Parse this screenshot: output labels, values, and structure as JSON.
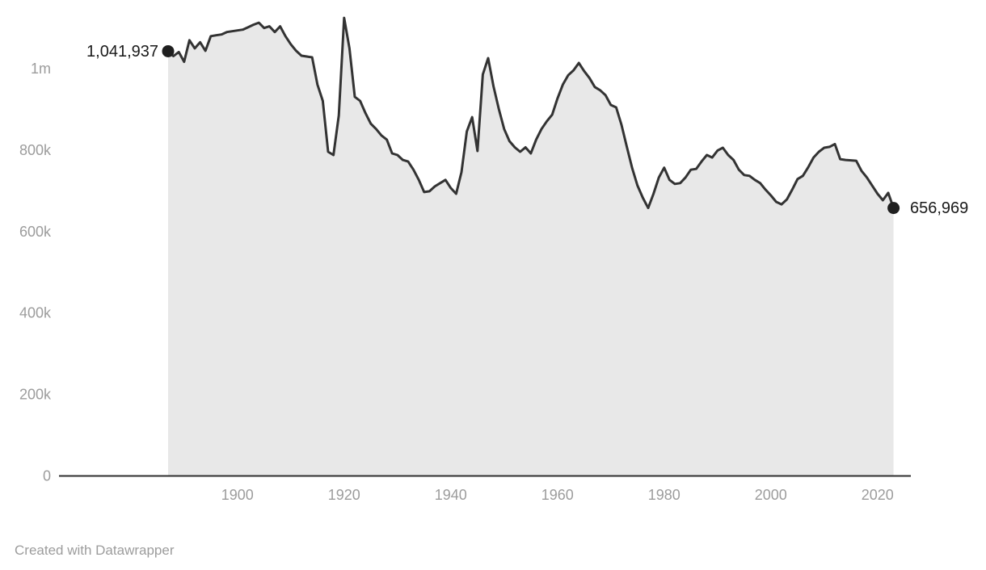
{
  "footer": {
    "attribution": "Created with Datawrapper"
  },
  "chart_data": {
    "type": "area",
    "title": "",
    "xlabel": "",
    "ylabel": "",
    "x_range": [
      1887,
      2023
    ],
    "x_step": 1,
    "ylim": [
      0,
      1150000
    ],
    "grid": "off",
    "legend": "none",
    "x_axis": {
      "ticks": [
        1900,
        1920,
        1940,
        1960,
        1980,
        2000,
        2020
      ],
      "tick_labels": [
        "1900",
        "1920",
        "1940",
        "1960",
        "1980",
        "2000",
        "2020"
      ]
    },
    "y_axis": {
      "ticks": [
        0,
        200000,
        400000,
        600000,
        800000,
        1000000
      ],
      "tick_labels": [
        "0",
        "200k",
        "400k",
        "600k",
        "800k",
        "1m"
      ]
    },
    "point_labels": {
      "start": "1,041,937",
      "end": "656,969"
    },
    "first_value": 1041937,
    "last_value": 656969,
    "values": [
      1041937,
      1030000,
      1040000,
      1016000,
      1069000,
      1049000,
      1064000,
      1043000,
      1079000,
      1081000,
      1083000,
      1089000,
      1091000,
      1093000,
      1095000,
      1101000,
      1107000,
      1112000,
      1099000,
      1103000,
      1089000,
      1103000,
      1079000,
      1059000,
      1043000,
      1031000,
      1029000,
      1027000,
      960000,
      920000,
      795000,
      787000,
      884000,
      1124000,
      1049000,
      930000,
      920000,
      890000,
      864000,
      851000,
      835000,
      825000,
      791000,
      787000,
      775000,
      771000,
      751000,
      726000,
      696000,
      698000,
      710000,
      718000,
      726000,
      706000,
      692000,
      745000,
      845000,
      880000,
      797000,
      985000,
      1025000,
      956000,
      900000,
      851000,
      821000,
      806000,
      795000,
      806000,
      791000,
      825000,
      851000,
      870000,
      886000,
      926000,
      960000,
      983000,
      995000,
      1013000,
      993000,
      976000,
      954000,
      946000,
      934000,
      910000,
      904000,
      861000,
      807000,
      755000,
      712000,
      682000,
      657000,
      692000,
      732000,
      756000,
      726000,
      716000,
      718000,
      732000,
      751000,
      753000,
      771000,
      787000,
      781000,
      798000,
      805000,
      787000,
      775000,
      751000,
      738000,
      736000,
      726000,
      718000,
      702000,
      688000,
      672000,
      666000,
      678000,
      702000,
      728000,
      736000,
      757000,
      781000,
      795000,
      805000,
      807000,
      814000,
      777000,
      775000,
      774000,
      773000,
      748000,
      732000,
      712000,
      692000,
      676000,
      694000,
      656969
    ],
    "style": {
      "line_color": "#333333",
      "fill_color": "#e8e8e8",
      "marker_color": "#1f1f1f",
      "axis_color": "#2f2f2f",
      "tick_text_color": "#9c9c9c",
      "label_text_color": "#1a1a1a",
      "background": "#ffffff"
    }
  }
}
